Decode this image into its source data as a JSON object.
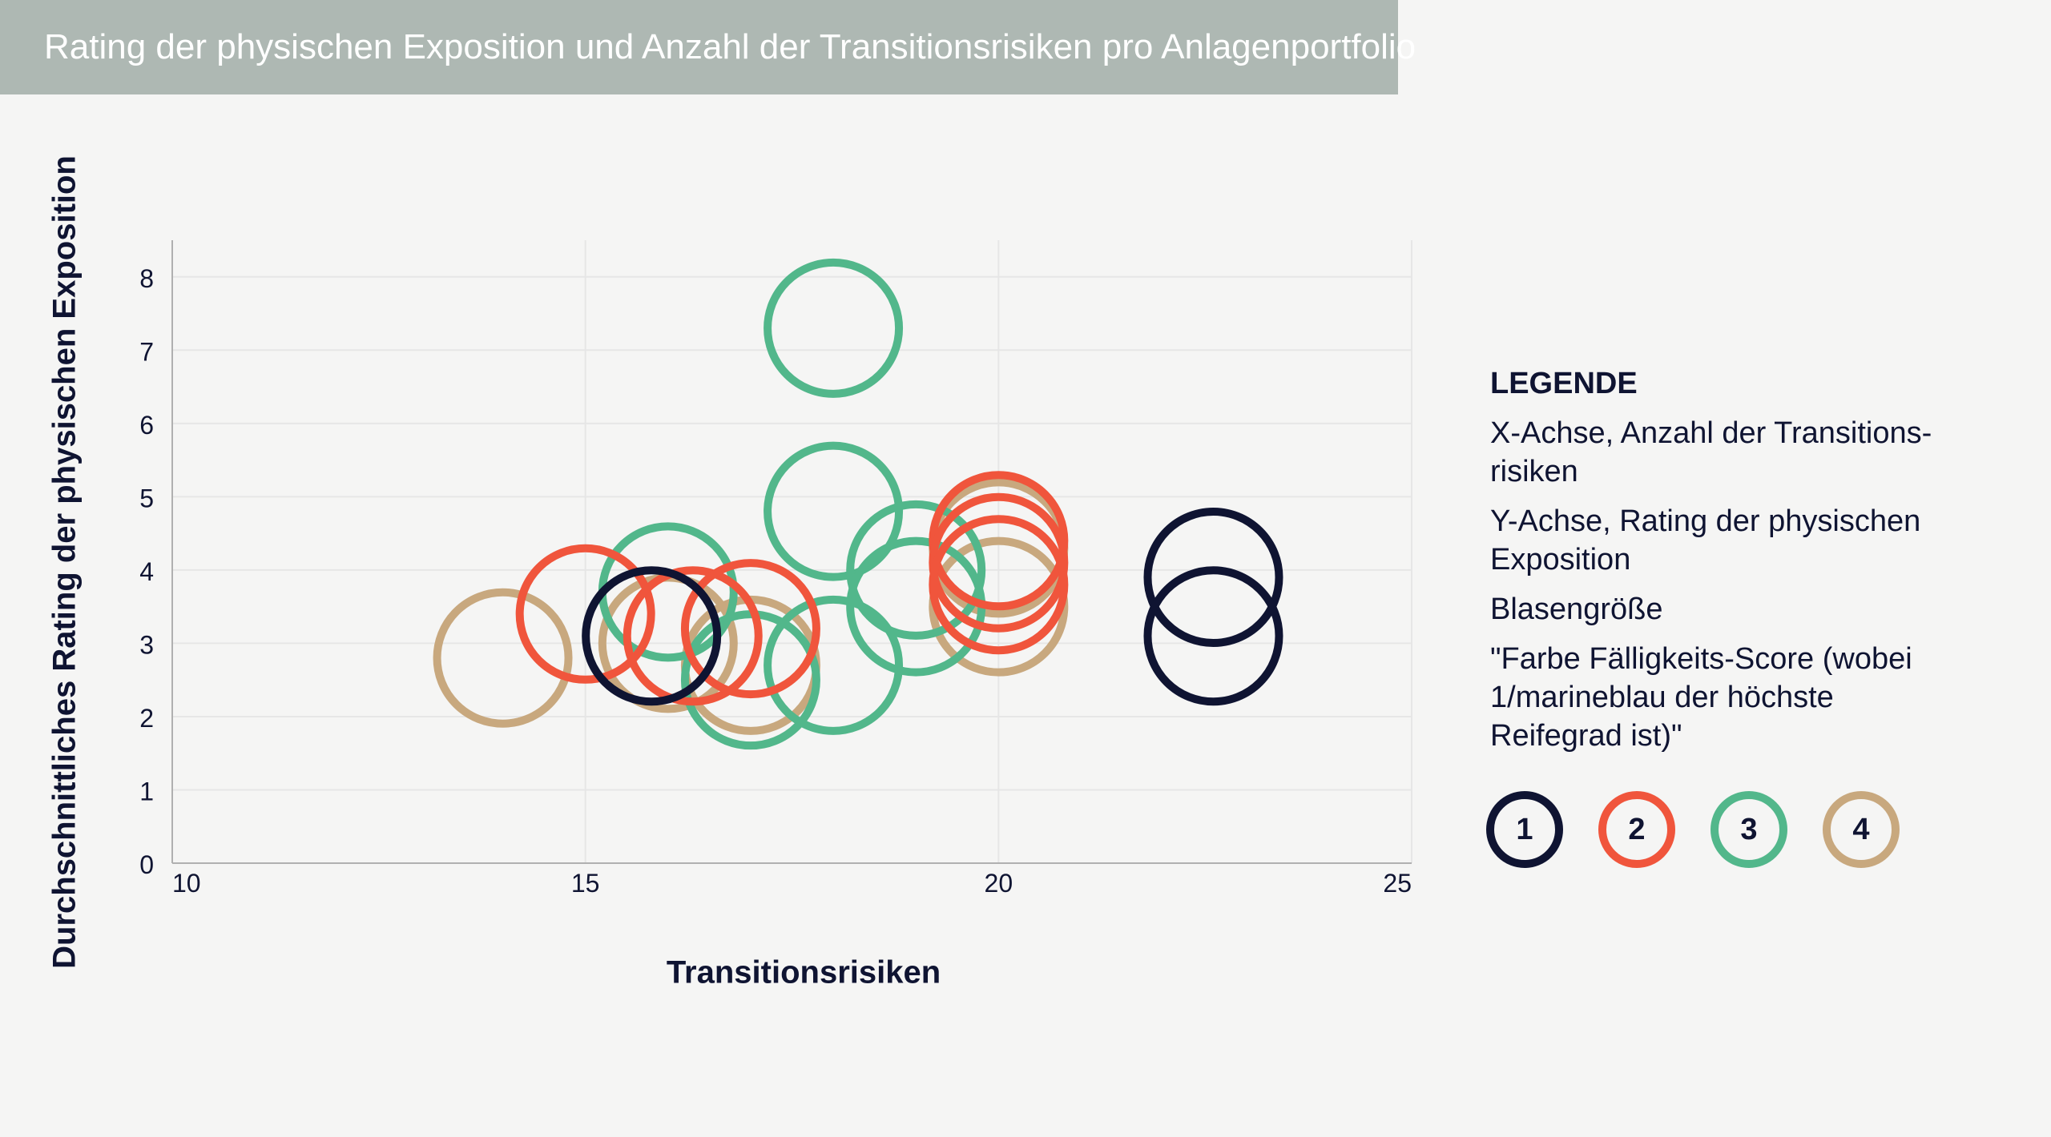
{
  "title": "Rating der physischen Exposition und Anzahl der Transitionsrisiken pro Anlagenportfolio",
  "colors": {
    "title_bar": "#aeb8b3",
    "background": "#f5f5f4",
    "score_1": "#0f1432",
    "score_2": "#f0553c",
    "score_3": "#52b78b",
    "score_4": "#c8a87e"
  },
  "legend": {
    "heading": "LEGENDE",
    "items": [
      "X-Achse, Anzahl der Transitions-risiken",
      "Y-Achse, Rating der physischen Exposition",
      "Blasengröße",
      "\"Farbe Fälligkeits-Score (wobei 1/marineblau der höchste Reifegrad ist)\""
    ],
    "swatches": [
      {
        "label": "1",
        "color": "#0f1432"
      },
      {
        "label": "2",
        "color": "#f0553c"
      },
      {
        "label": "3",
        "color": "#52b78b"
      },
      {
        "label": "4",
        "color": "#c8a87e"
      }
    ]
  },
  "chart_data": {
    "type": "scatter",
    "xlabel": "Transitionsrisiken",
    "ylabel": "Durchschnittliches Rating der physischen Exposition",
    "xlim": [
      10,
      25
    ],
    "ylim": [
      0,
      8.5
    ],
    "x_ticks": [
      "10",
      "15",
      "20",
      "25"
    ],
    "y_ticks": [
      "0",
      "1",
      "2",
      "3",
      "4",
      "5",
      "6",
      "7",
      "8"
    ],
    "grid": true,
    "bubble_size": "uniform",
    "series": [
      {
        "name": "1",
        "color": "#0f1432",
        "points": [
          {
            "x": 15.8,
            "y": 3.1
          },
          {
            "x": 22.6,
            "y": 3.9
          },
          {
            "x": 22.6,
            "y": 3.1
          }
        ]
      },
      {
        "name": "2",
        "color": "#f0553c",
        "points": [
          {
            "x": 15.0,
            "y": 3.4
          },
          {
            "x": 16.3,
            "y": 3.1
          },
          {
            "x": 17.0,
            "y": 3.2
          },
          {
            "x": 20.0,
            "y": 4.4
          },
          {
            "x": 20.0,
            "y": 4.1
          },
          {
            "x": 20.0,
            "y": 3.8
          }
        ]
      },
      {
        "name": "3",
        "color": "#52b78b",
        "points": [
          {
            "x": 18.0,
            "y": 7.3
          },
          {
            "x": 18.0,
            "y": 4.8
          },
          {
            "x": 16.0,
            "y": 3.7
          },
          {
            "x": 19.0,
            "y": 4.0
          },
          {
            "x": 19.0,
            "y": 3.5
          },
          {
            "x": 18.0,
            "y": 2.7
          },
          {
            "x": 17.0,
            "y": 2.5
          }
        ]
      },
      {
        "name": "4",
        "color": "#c8a87e",
        "points": [
          {
            "x": 14.0,
            "y": 2.8
          },
          {
            "x": 16.0,
            "y": 3.0
          },
          {
            "x": 17.0,
            "y": 2.7
          },
          {
            "x": 20.0,
            "y": 3.5
          },
          {
            "x": 20.0,
            "y": 4.3
          }
        ]
      }
    ]
  }
}
